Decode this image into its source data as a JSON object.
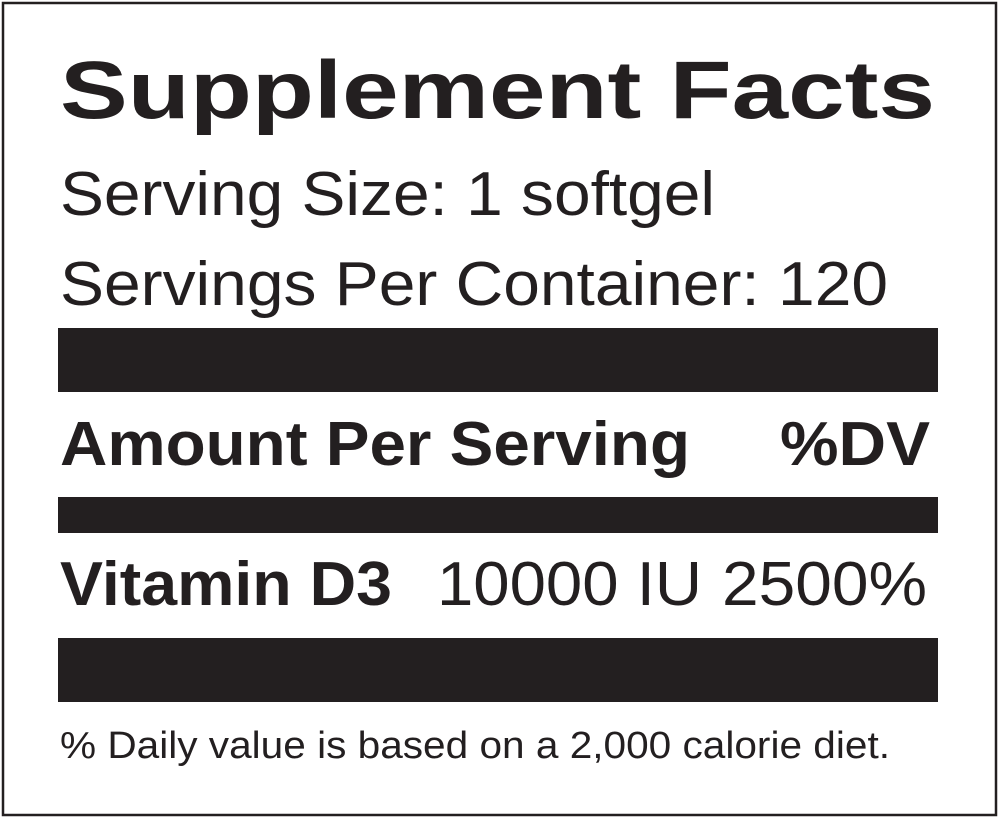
{
  "label": {
    "title": "Supplement Facts",
    "serving_size": "Serving Size: 1 softgel",
    "servings_per_container": "Servings Per Container: 120",
    "header": {
      "amount": "Amount Per Serving",
      "dv": "%DV"
    },
    "rows": [
      {
        "name": "Vitamin D3",
        "amount": "10000 IU",
        "dv": "2500%"
      }
    ],
    "footnote": "% Daily value is based on a 2,000 calorie diet."
  }
}
